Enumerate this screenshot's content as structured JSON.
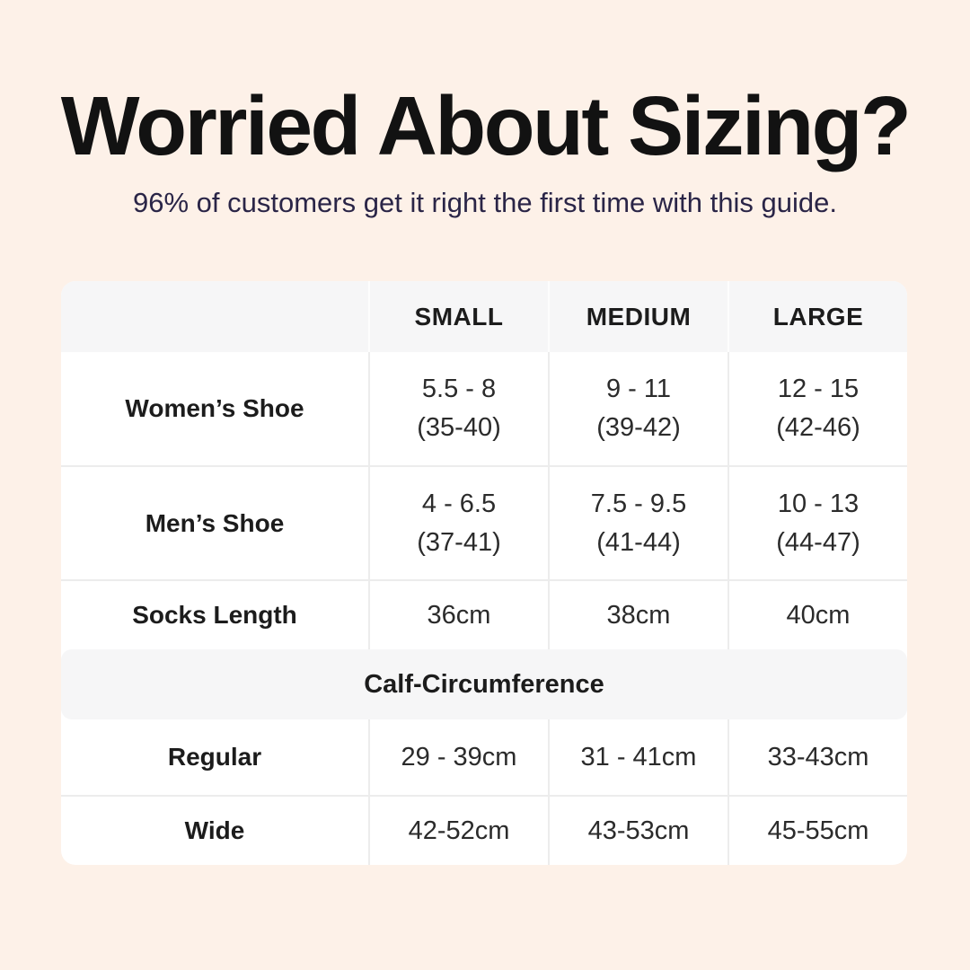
{
  "header": {
    "title": "Worried About Sizing?",
    "subtitle": "96% of customers get it right the first time with this guide."
  },
  "table": {
    "columns": [
      "",
      "SMALL",
      "MEDIUM",
      "LARGE"
    ],
    "shoe_rows": [
      {
        "label": "Women’s Shoe",
        "cells": [
          {
            "l1": "5.5 - 8",
            "l2": "(35-40)"
          },
          {
            "l1": "9 - 11",
            "l2": "(39-42)"
          },
          {
            "l1": "12 - 15",
            "l2": "(42-46)"
          }
        ]
      },
      {
        "label": "Men’s Shoe",
        "cells": [
          {
            "l1": "4 - 6.5",
            "l2": "(37-41)"
          },
          {
            "l1": "7.5 - 9.5",
            "l2": "(41-44)"
          },
          {
            "l1": "10 - 13",
            "l2": "(44-47)"
          }
        ]
      },
      {
        "label": "Socks Length",
        "cells": [
          {
            "l1": "36cm"
          },
          {
            "l1": "38cm"
          },
          {
            "l1": "40cm"
          }
        ]
      }
    ],
    "section_header": "Calf-Circumference",
    "calf_rows": [
      {
        "label": "Regular",
        "cells": [
          {
            "l1": "29 - 39cm"
          },
          {
            "l1": "31 - 41cm"
          },
          {
            "l1": "33-43cm"
          }
        ]
      },
      {
        "label": "Wide",
        "cells": [
          {
            "l1": "42-52cm"
          },
          {
            "l1": "43-53cm"
          },
          {
            "l1": "45-55cm"
          }
        ]
      }
    ]
  },
  "chart_data": {
    "type": "table",
    "title": "Worried About Sizing?",
    "subtitle": "96% of customers get it right the first time with this guide.",
    "columns": [
      "",
      "SMALL",
      "MEDIUM",
      "LARGE"
    ],
    "rows": [
      [
        "Women’s Shoe",
        "5.5 - 8 (35-40)",
        "9 - 11 (39-42)",
        "12 - 15 (42-46)"
      ],
      [
        "Men’s Shoe",
        "4 - 6.5 (37-41)",
        "7.5 - 9.5 (41-44)",
        "10 - 13 (44-47)"
      ],
      [
        "Socks Length",
        "36cm",
        "38cm",
        "40cm"
      ],
      [
        "Calf-Circumference",
        "",
        "",
        ""
      ],
      [
        "Regular",
        "29 - 39cm",
        "31 - 41cm",
        "33-43cm"
      ],
      [
        "Wide",
        "42-52cm",
        "43-53cm",
        "45-55cm"
      ]
    ],
    "layout_hints": {
      "section_row_index": 3,
      "section_spans_all_columns": true,
      "header_background": "#f6f6f7",
      "grid": "light-gray dividers"
    }
  },
  "colors": {
    "bg": "#fdf1e8",
    "card": "#ffffff",
    "band": "#f6f6f7",
    "divider": "#ececec",
    "title": "#121212",
    "subtitle": "#2a2547",
    "text": "#2b2b2b",
    "text-strong": "#1c1c1c"
  }
}
